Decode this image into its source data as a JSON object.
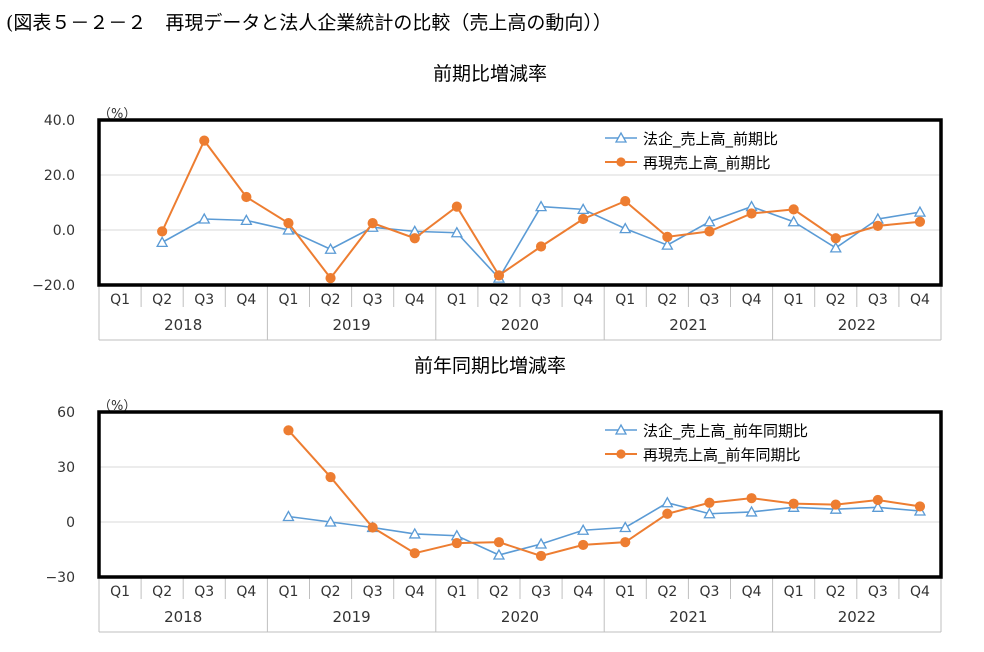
{
  "figure_title": "(図表５－２－２　再現データと法人企業統計の比較（売上高の動向））",
  "chart_data": [
    {
      "type": "line",
      "title": "前期比増減率",
      "unit_label": "（%）",
      "ylim": [
        -20,
        40
      ],
      "yticks": [
        "40.0",
        "20.0",
        "0.0",
        "−20.0"
      ],
      "ytick_values": [
        40,
        20,
        0,
        -20
      ],
      "categories": [
        "Q1",
        "Q2",
        "Q3",
        "Q4",
        "Q1",
        "Q2",
        "Q3",
        "Q4",
        "Q1",
        "Q2",
        "Q3",
        "Q4",
        "Q1",
        "Q2",
        "Q3",
        "Q4",
        "Q1",
        "Q2",
        "Q3",
        "Q4"
      ],
      "years": [
        "2018",
        "2019",
        "2020",
        "2021",
        "2022"
      ],
      "legend_position": "top-right",
      "series": [
        {
          "name": "法企_売上高_前期比",
          "color": "#5B9BD5",
          "marker": "triangle",
          "values": [
            null,
            -4.5,
            4.0,
            3.5,
            0.0,
            -7.0,
            1.0,
            -0.5,
            -1.0,
            -17.5,
            8.5,
            7.5,
            0.5,
            -5.5,
            3.0,
            8.5,
            3.0,
            -6.5,
            4.0,
            6.5
          ]
        },
        {
          "name": "再現売上高_前期比",
          "color": "#ED7D31",
          "marker": "circle",
          "values": [
            null,
            -0.5,
            32.5,
            12.0,
            2.5,
            -17.5,
            2.5,
            -3.0,
            8.5,
            -16.5,
            -6.0,
            4.0,
            10.5,
            -2.5,
            -0.5,
            6.0,
            7.5,
            -3.0,
            1.5,
            3.0
          ]
        }
      ]
    },
    {
      "type": "line",
      "title": "前年同期比増減率",
      "unit_label": "（%）",
      "ylim": [
        -30,
        60
      ],
      "yticks": [
        "60",
        "30",
        "0",
        "−30"
      ],
      "ytick_values": [
        60,
        30,
        0,
        -30
      ],
      "categories": [
        "Q1",
        "Q2",
        "Q3",
        "Q4",
        "Q1",
        "Q2",
        "Q3",
        "Q4",
        "Q1",
        "Q2",
        "Q3",
        "Q4",
        "Q1",
        "Q2",
        "Q3",
        "Q4",
        "Q1",
        "Q2",
        "Q3",
        "Q4"
      ],
      "years": [
        "2018",
        "2019",
        "2020",
        "2021",
        "2022"
      ],
      "legend_position": "top-right",
      "series": [
        {
          "name": "法企_売上高_前年同期比",
          "color": "#5B9BD5",
          "marker": "triangle",
          "values": [
            null,
            null,
            null,
            null,
            3.0,
            0.0,
            -3.0,
            -6.5,
            -7.5,
            -18.0,
            -12.0,
            -4.5,
            -3.0,
            10.5,
            4.5,
            5.5,
            8.0,
            7.0,
            8.0,
            6.0
          ]
        },
        {
          "name": "再現売上高_前年同期比",
          "color": "#ED7D31",
          "marker": "circle",
          "values": [
            null,
            null,
            null,
            null,
            50.0,
            24.5,
            -3.0,
            -17.0,
            -11.5,
            -11.0,
            -18.5,
            -12.5,
            -11.0,
            4.5,
            10.5,
            13.0,
            10.0,
            9.5,
            12.0,
            8.5
          ]
        }
      ]
    }
  ]
}
